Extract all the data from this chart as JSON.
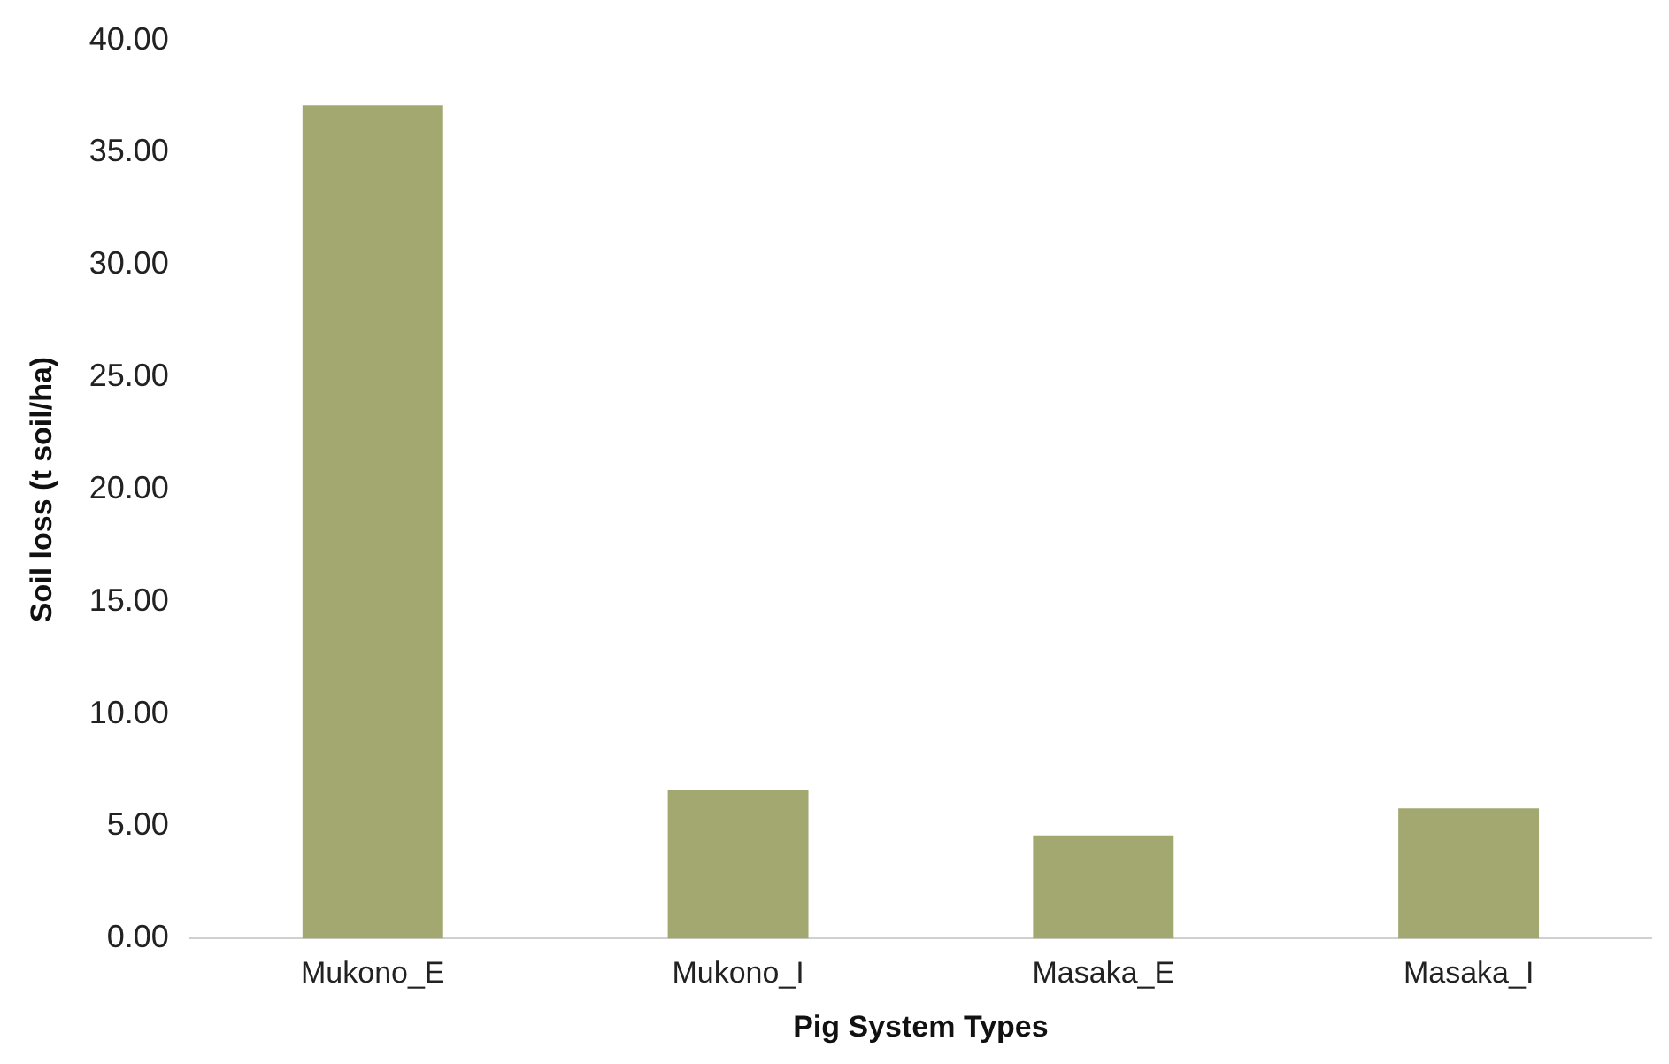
{
  "chart_data": {
    "type": "bar",
    "xlabel": "Pig System Types",
    "ylabel": "Soil loss (t soil/ha)",
    "categories": [
      "Mukono_E",
      "Mukono_I",
      "Masaka_E",
      "Masaka_I"
    ],
    "values": [
      37.1,
      6.6,
      4.6,
      5.8
    ],
    "color": "#a2a870",
    "ylim": [
      0,
      40
    ],
    "yticks": [
      {
        "value": 0,
        "label": "0.00"
      },
      {
        "value": 5,
        "label": "5.00"
      },
      {
        "value": 10,
        "label": "10.00"
      },
      {
        "value": 15,
        "label": "15.00"
      },
      {
        "value": 20,
        "label": "20.00"
      },
      {
        "value": 25,
        "label": "25.00"
      },
      {
        "value": 30,
        "label": "30.00"
      },
      {
        "value": 35,
        "label": "35.00"
      },
      {
        "value": 40,
        "label": "40.00"
      }
    ],
    "grid": false,
    "legend": false
  }
}
